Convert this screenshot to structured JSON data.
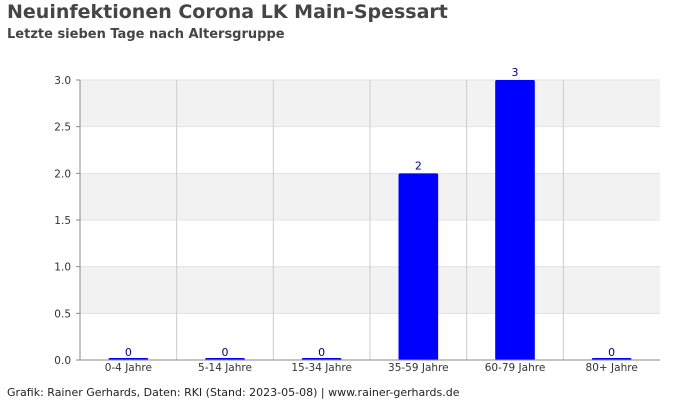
{
  "header": {
    "title": "Neuinfektionen Corona LK Main-Spessart",
    "subtitle": "Letzte sieben Tage nach Altersgruppe"
  },
  "footer": {
    "text": "Grafik: Rainer Gerhards, Daten: RKI (Stand: 2023-05-08) | www.rainer-gerhards.de"
  },
  "colors": {
    "bar": "#0000ff",
    "band_alt": "#f2f2f2",
    "grid": "#cccccc",
    "data_label": "#000080"
  },
  "chart_data": {
    "type": "bar",
    "title": "Neuinfektionen Corona LK Main-Spessart",
    "subtitle": "Letzte sieben Tage nach Altersgruppe",
    "categories": [
      "0-4 Jahre",
      "5-14 Jahre",
      "15-34 Jahre",
      "35-59 Jahre",
      "60-79 Jahre",
      "80+ Jahre"
    ],
    "values": [
      0,
      0,
      0,
      2,
      3,
      0
    ],
    "data_labels": [
      "0",
      "0",
      "0",
      "2",
      "3",
      "0"
    ],
    "yticks": [
      "0.0",
      "0.5",
      "1.0",
      "1.5",
      "2.0",
      "2.5",
      "3.0"
    ],
    "ylim": [
      0,
      3
    ],
    "xlabel": "",
    "ylabel": "",
    "grid": true,
    "legend": "none"
  }
}
